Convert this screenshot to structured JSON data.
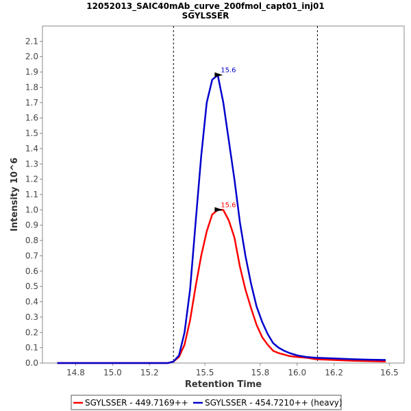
{
  "chart_data": {
    "type": "line",
    "title": "12052013_SAIC40mAb_curve_200fmol_capt01_inj01",
    "subtitle": "SGYLSSER",
    "xlabel": "Retention Time",
    "ylabel": "Intensity 10^6",
    "xlim": [
      14.62,
      16.58
    ],
    "ylim": [
      0.0,
      2.2
    ],
    "x_ticks": [
      "14.8",
      "15.0",
      "15.2",
      "15.5",
      "15.8",
      "16.0",
      "16.2",
      "16.5"
    ],
    "x_tick_values": [
      14.8,
      15.0,
      15.2,
      15.5,
      15.8,
      16.0,
      16.2,
      16.5
    ],
    "y_ticks": [
      "0.0",
      "0.1",
      "0.2",
      "0.3",
      "0.4",
      "0.5",
      "0.6",
      "0.7",
      "0.8",
      "0.9",
      "1.0",
      "1.1",
      "1.2",
      "1.3",
      "1.4",
      "1.5",
      "1.6",
      "1.7",
      "1.8",
      "1.9",
      "2.0",
      "2.1"
    ],
    "y_tick_values": [
      0.0,
      0.1,
      0.2,
      0.3,
      0.4,
      0.5,
      0.6,
      0.7,
      0.8,
      0.9,
      1.0,
      1.1,
      1.2,
      1.3,
      1.4,
      1.5,
      1.6,
      1.7,
      1.8,
      1.9,
      2.0,
      2.1
    ],
    "integration_boundaries": [
      15.33,
      16.11
    ],
    "grid": false,
    "legend_position": "bottom",
    "series": [
      {
        "name": "SGYLSSER - 449.7169++",
        "color": "#ff0000",
        "peak": {
          "x": 15.62,
          "y": 1.0,
          "label": "15.6"
        },
        "x": [
          14.7,
          15.3,
          15.33,
          15.36,
          15.39,
          15.42,
          15.45,
          15.48,
          15.51,
          15.54,
          15.57,
          15.6,
          15.63,
          15.66,
          15.69,
          15.72,
          15.75,
          15.78,
          15.81,
          15.84,
          15.87,
          15.9,
          15.93,
          15.96,
          16.0,
          16.05,
          16.1,
          16.2,
          16.3,
          16.4,
          16.48
        ],
        "y": [
          0.0,
          0.0,
          0.01,
          0.04,
          0.12,
          0.28,
          0.5,
          0.7,
          0.86,
          0.97,
          1.0,
          1.0,
          0.93,
          0.82,
          0.63,
          0.48,
          0.36,
          0.25,
          0.17,
          0.12,
          0.08,
          0.065,
          0.055,
          0.045,
          0.04,
          0.035,
          0.025,
          0.02,
          0.015,
          0.012,
          0.01
        ]
      },
      {
        "name": "SGYLSSER - 454.7210++ (heavy)",
        "color": "#0000cc",
        "peak": {
          "x": 15.62,
          "y": 1.88,
          "label": "15.6"
        },
        "x": [
          14.7,
          15.3,
          15.33,
          15.36,
          15.39,
          15.42,
          15.45,
          15.48,
          15.51,
          15.54,
          15.57,
          15.6,
          15.63,
          15.66,
          15.69,
          15.72,
          15.75,
          15.78,
          15.81,
          15.84,
          15.87,
          15.9,
          15.93,
          15.96,
          16.0,
          16.05,
          16.1,
          16.2,
          16.3,
          16.4,
          16.48
        ],
        "y": [
          0.0,
          0.0,
          0.01,
          0.05,
          0.2,
          0.48,
          0.92,
          1.35,
          1.7,
          1.85,
          1.88,
          1.7,
          1.45,
          1.2,
          0.92,
          0.7,
          0.52,
          0.37,
          0.27,
          0.19,
          0.13,
          0.1,
          0.08,
          0.065,
          0.05,
          0.04,
          0.035,
          0.03,
          0.025,
          0.022,
          0.02
        ]
      }
    ]
  }
}
